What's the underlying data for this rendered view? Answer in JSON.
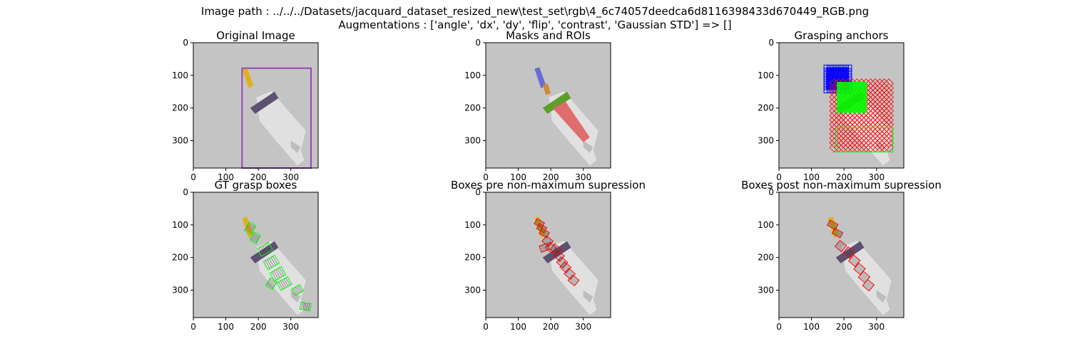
{
  "figure": {
    "suptitle_line1": "Image path : ../../../Datasets/jacquard_dataset_resized_new\\test_set\\rgb\\4_6c74057deedca6d8116398433d670449_RGB.png",
    "suptitle_line2": "Augmentations : ['angle', 'dx', 'dy', 'flip', 'contrast', 'Gaussian STD'] => []"
  },
  "panels": [
    {
      "id": "original",
      "title": "Original Image"
    },
    {
      "id": "masks",
      "title": "Masks and ROIs"
    },
    {
      "id": "anchors",
      "title": "Grasping anchors"
    },
    {
      "id": "gt",
      "title": "GT grasp boxes"
    },
    {
      "id": "pre",
      "title": "Boxes pre non-maximum supression"
    },
    {
      "id": "post",
      "title": "Boxes post non-maximum supression"
    }
  ],
  "axes": {
    "xticks": [
      "0",
      "100",
      "200",
      "300"
    ],
    "yticks": [
      "0",
      "100",
      "200",
      "300"
    ],
    "xlim": [
      0,
      384
    ],
    "ylim": [
      384,
      0
    ]
  },
  "colors": {
    "background": "#c4c4c4",
    "object": "#e0e0e0",
    "handle": "#5e5070",
    "tip": "#e0b020",
    "roi": "#9a45b8",
    "anchor_blue": "#0000ff",
    "anchor_green": "#00ff00",
    "anchor_red": "#ff0000",
    "mask_blue": "#6a6ad8",
    "mask_green": "#5aa02a",
    "mask_red": "#e06060",
    "mask_orange": "#d08a30"
  }
}
